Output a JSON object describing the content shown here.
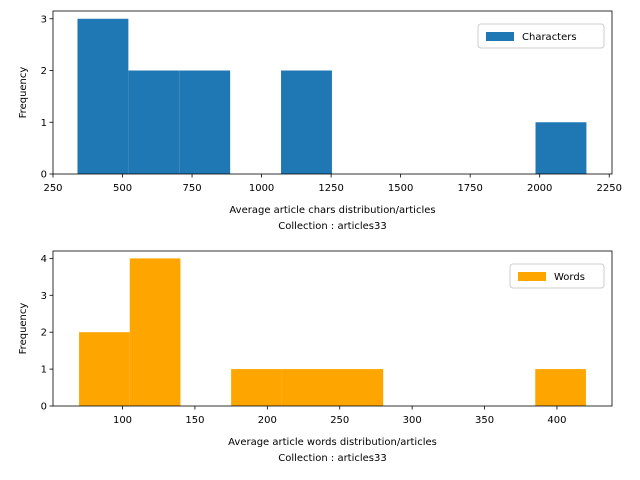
{
  "chart_data": [
    {
      "type": "bar",
      "title": "",
      "xlabel": "Average article chars distribution/articles",
      "xlabel2": "Collection : articles33",
      "ylabel": "Frequency",
      "legend": {
        "label": "Characters",
        "placement": "top-right"
      },
      "color": "#1f77b4",
      "bins": [
        {
          "x0": 338,
          "x1": 521,
          "count": 3
        },
        {
          "x0": 521,
          "x1": 704,
          "count": 2
        },
        {
          "x0": 704,
          "x1": 887,
          "count": 2
        },
        {
          "x0": 887,
          "x1": 1070,
          "count": 0
        },
        {
          "x0": 1070,
          "x1": 1253,
          "count": 2
        },
        {
          "x0": 1253,
          "x1": 1436,
          "count": 0
        },
        {
          "x0": 1436,
          "x1": 1619,
          "count": 0
        },
        {
          "x0": 1619,
          "x1": 1802,
          "count": 0
        },
        {
          "x0": 1802,
          "x1": 1985,
          "count": 0
        },
        {
          "x0": 1985,
          "x1": 2168,
          "count": 1
        }
      ],
      "xlim": [
        250,
        2260
      ],
      "ylim": [
        0,
        3.15
      ],
      "xticks": [
        250,
        500,
        750,
        1000,
        1250,
        1500,
        1750,
        2000,
        2250
      ],
      "yticks": [
        0,
        1,
        2,
        3
      ]
    },
    {
      "type": "bar",
      "title": "",
      "xlabel": "Average article words distribution/articles",
      "xlabel2": "Collection : articles33",
      "ylabel": "Frequency",
      "legend": {
        "label": "Words",
        "placement": "top-right"
      },
      "color": "#ffa500",
      "bins": [
        {
          "x0": 70,
          "x1": 105,
          "count": 2
        },
        {
          "x0": 105,
          "x1": 140,
          "count": 4
        },
        {
          "x0": 140,
          "x1": 175,
          "count": 0
        },
        {
          "x0": 175,
          "x1": 210,
          "count": 1
        },
        {
          "x0": 210,
          "x1": 245,
          "count": 1
        },
        {
          "x0": 245,
          "x1": 280,
          "count": 1
        },
        {
          "x0": 280,
          "x1": 315,
          "count": 0
        },
        {
          "x0": 315,
          "x1": 350,
          "count": 0
        },
        {
          "x0": 350,
          "x1": 385,
          "count": 0
        },
        {
          "x0": 385,
          "x1": 420,
          "count": 1
        }
      ],
      "xlim": [
        52,
        438
      ],
      "ylim": [
        0,
        4.2
      ],
      "xticks": [
        100,
        150,
        200,
        250,
        300,
        350,
        400
      ],
      "yticks": [
        0,
        1,
        2,
        3,
        4
      ]
    }
  ]
}
